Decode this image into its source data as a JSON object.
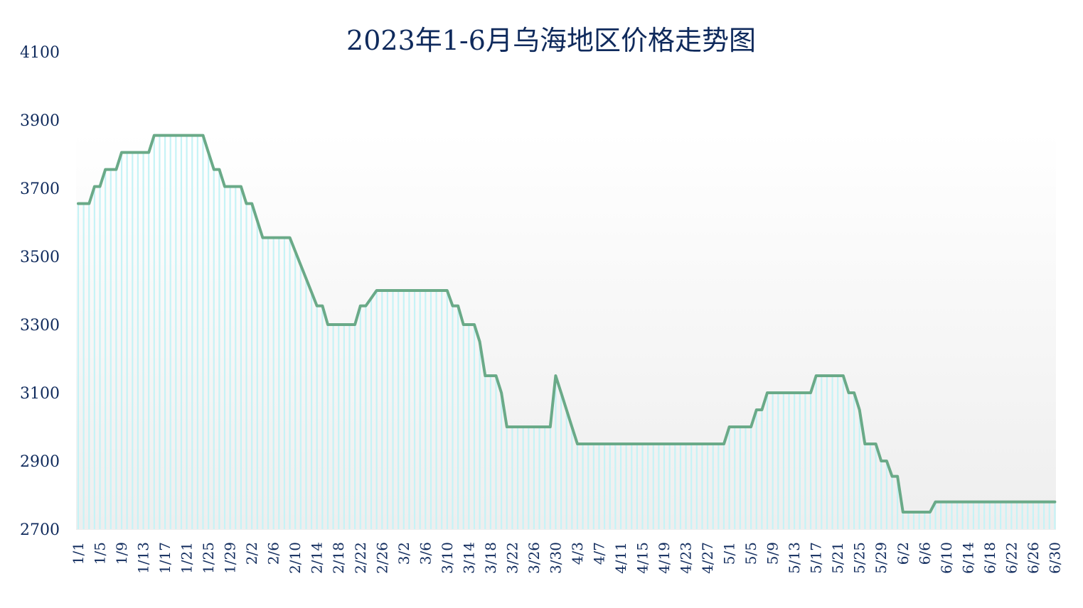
{
  "chart_data": {
    "type": "area",
    "title": "2023年1-6月乌海地区价格走势图",
    "xlabel": "",
    "ylabel": "",
    "ylim": [
      2700,
      4100
    ],
    "yticks": [
      2700,
      2900,
      3100,
      3300,
      3500,
      3700,
      3900,
      4100
    ],
    "xticks": [
      "1/1",
      "1/5",
      "1/9",
      "1/13",
      "1/17",
      "1/21",
      "1/25",
      "1/29",
      "2/2",
      "2/6",
      "2/10",
      "2/14",
      "2/18",
      "2/22",
      "2/26",
      "3/2",
      "3/6",
      "3/10",
      "3/14",
      "3/18",
      "3/22",
      "3/26",
      "3/30",
      "4/3",
      "4/7",
      "4/11",
      "4/15",
      "4/19",
      "4/23",
      "4/27",
      "5/1",
      "5/5",
      "5/9",
      "5/13",
      "5/17",
      "5/21",
      "5/25",
      "5/29",
      "6/2",
      "6/6",
      "6/10",
      "6/14",
      "6/18",
      "6/22",
      "6/26",
      "6/30"
    ],
    "grid": false,
    "legend": "none",
    "colors": {
      "line": "#6aaa88",
      "fill_bar": "#c6f3f6",
      "plot_bg_top": "#ffffff",
      "plot_bg_bottom": "#eeeeee",
      "text": "#0f2a5c"
    },
    "breakpoints": [
      [
        "1/1",
        3655
      ],
      [
        "1/3",
        3655
      ],
      [
        "1/4",
        3705
      ],
      [
        "1/5",
        3705
      ],
      [
        "1/6",
        3755
      ],
      [
        "1/7",
        3755
      ],
      [
        "1/8",
        3755
      ],
      [
        "1/9",
        3805
      ],
      [
        "1/14",
        3805
      ],
      [
        "1/15",
        3855
      ],
      [
        "1/24",
        3855
      ],
      [
        "1/26",
        3755
      ],
      [
        "1/27",
        3755
      ],
      [
        "1/28",
        3705
      ],
      [
        "1/31",
        3705
      ],
      [
        "2/1",
        3655
      ],
      [
        "2/2",
        3655
      ],
      [
        "2/4",
        3555
      ],
      [
        "2/9",
        3555
      ],
      [
        "2/14",
        3355
      ],
      [
        "2/15",
        3355
      ],
      [
        "2/16",
        3300
      ],
      [
        "2/21",
        3300
      ],
      [
        "2/22",
        3355
      ],
      [
        "2/23",
        3355
      ],
      [
        "2/25",
        3400
      ],
      [
        "3/10",
        3400
      ],
      [
        "3/11",
        3355
      ],
      [
        "3/12",
        3355
      ],
      [
        "3/13",
        3300
      ],
      [
        "3/15",
        3300
      ],
      [
        "3/16",
        3250
      ],
      [
        "3/17",
        3150
      ],
      [
        "3/19",
        3150
      ],
      [
        "3/20",
        3100
      ],
      [
        "3/21",
        3000
      ],
      [
        "3/29",
        3000
      ],
      [
        "3/30",
        3150
      ],
      [
        "3/31",
        3100
      ],
      [
        "4/3",
        2950
      ],
      [
        "4/30",
        2950
      ],
      [
        "5/1",
        3000
      ],
      [
        "5/5",
        3000
      ],
      [
        "5/6",
        3050
      ],
      [
        "5/7",
        3050
      ],
      [
        "5/8",
        3100
      ],
      [
        "5/16",
        3100
      ],
      [
        "5/17",
        3150
      ],
      [
        "5/22",
        3150
      ],
      [
        "5/23",
        3100
      ],
      [
        "5/24",
        3100
      ],
      [
        "5/25",
        3050
      ],
      [
        "5/26",
        2950
      ],
      [
        "5/28",
        2950
      ],
      [
        "5/29",
        2900
      ],
      [
        "5/30",
        2900
      ],
      [
        "5/31",
        2855
      ],
      [
        "6/1",
        2855
      ],
      [
        "6/2",
        2750
      ],
      [
        "6/7",
        2750
      ],
      [
        "6/8",
        2780
      ],
      [
        "6/30",
        2780
      ]
    ]
  }
}
